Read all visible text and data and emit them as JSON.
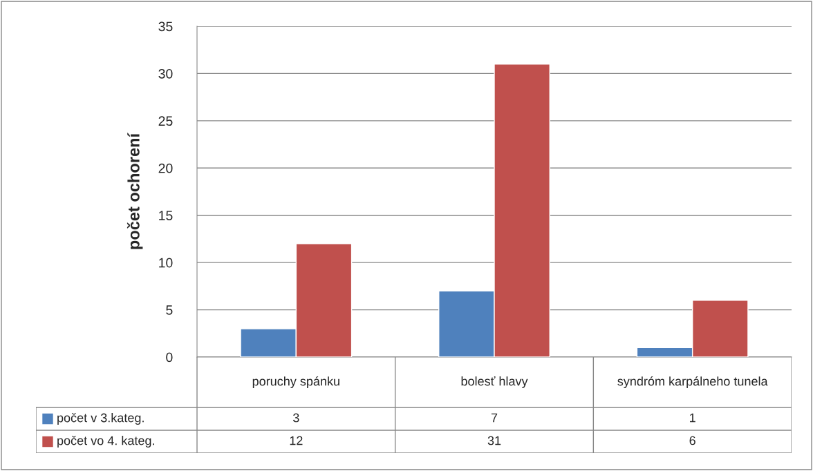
{
  "chart_data": {
    "type": "bar",
    "ylabel": "počet ochorení",
    "categories": [
      "poruchy spánku",
      "bolesť hlavy",
      "syndróm karpálneho tunela"
    ],
    "series": [
      {
        "name": "počet v 3.kateg.",
        "color": "#4f81bd",
        "values": [
          3,
          7,
          1
        ]
      },
      {
        "name": "počet vo 4. kateg.",
        "color": "#c0504d",
        "values": [
          12,
          31,
          6
        ]
      }
    ],
    "ylim": [
      0,
      35
    ],
    "yticks": [
      0,
      5,
      10,
      15,
      20,
      25,
      30,
      35
    ],
    "grid": "y",
    "legend": "bottom",
    "data_labels": true
  }
}
